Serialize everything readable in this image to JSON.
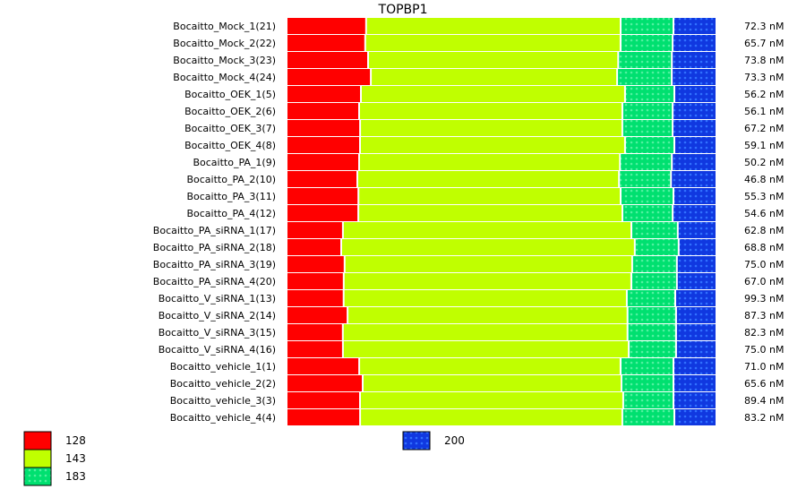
{
  "chart_data": {
    "type": "bar",
    "stacked": "percent",
    "orientation": "horizontal",
    "title": "TOPBP1",
    "categories": [
      "Bocaitto_Mock_1(21)",
      "Bocaitto_Mock_2(22)",
      "Bocaitto_Mock_3(23)",
      "Bocaitto_Mock_4(24)",
      "Bocaitto_OEK_1(5)",
      "Bocaitto_OEK_2(6)",
      "Bocaitto_OEK_3(7)",
      "Bocaitto_OEK_4(8)",
      "Bocaitto_PA_1(9)",
      "Bocaitto_PA_2(10)",
      "Bocaitto_PA_3(11)",
      "Bocaitto_PA_4(12)",
      "Bocaitto_PA_siRNA_1(17)",
      "Bocaitto_PA_siRNA_2(18)",
      "Bocaitto_PA_siRNA_3(19)",
      "Bocaitto_PA_siRNA_4(20)",
      "Bocaitto_V_siRNA_1(13)",
      "Bocaitto_V_siRNA_2(14)",
      "Bocaitto_V_siRNA_3(15)",
      "Bocaitto_V_siRNA_4(16)",
      "Bocaitto_vehicle_1(1)",
      "Bocaitto_vehicle_2(2)",
      "Bocaitto_vehicle_3(3)",
      "Bocaitto_vehicle_4(4)"
    ],
    "totals": [
      "72.3 nM",
      "65.7 nM",
      "73.8 nM",
      "73.3 nM",
      "56.2 nM",
      "56.1 nM",
      "67.2 nM",
      "59.1 nM",
      "50.2 nM",
      "46.8 nM",
      "55.3 nM",
      "54.6 nM",
      "62.8 nM",
      "68.8 nM",
      "75.0 nM",
      "67.0 nM",
      "99.3 nM",
      "87.3 nM",
      "82.3 nM",
      "75.0 nM",
      "71.0 nM",
      "65.6 nM",
      "89.4 nM",
      "83.2 nM"
    ],
    "series": [
      {
        "name": "128",
        "color": "#ff0000",
        "values": [
          18.5,
          18.3,
          19.0,
          19.6,
          17.3,
          16.9,
          17.1,
          17.1,
          16.9,
          16.5,
          16.7,
          16.7,
          13.1,
          12.7,
          13.5,
          13.3,
          13.3,
          14.2,
          13.1,
          13.1,
          16.9,
          17.7,
          17.1,
          17.1
        ]
      },
      {
        "name": "143",
        "color": "#c0ff00",
        "values": [
          59.2,
          59.4,
          58.3,
          57.3,
          61.5,
          61.3,
          61.0,
          61.7,
          60.8,
          61.0,
          61.0,
          61.5,
          67.1,
          68.3,
          66.9,
          66.9,
          66.0,
          65.2,
          66.3,
          66.5,
          60.8,
          60.2,
          61.3,
          61.0
        ]
      },
      {
        "name": "183",
        "color": "#00e070",
        "values": [
          12.3,
          12.1,
          12.5,
          12.7,
          11.5,
          11.7,
          11.7,
          11.5,
          12.1,
          12.1,
          12.3,
          11.7,
          10.8,
          10.2,
          10.4,
          10.6,
          11.3,
          11.3,
          11.3,
          11.0,
          12.3,
          12.1,
          11.7,
          12.1
        ]
      },
      {
        "name": "200",
        "color": "#1040e0",
        "values": [
          10.0,
          10.2,
          10.4,
          10.4,
          9.8,
          10.2,
          10.2,
          9.8,
          10.4,
          10.6,
          10.0,
          10.2,
          9.0,
          8.8,
          9.2,
          9.2,
          9.6,
          9.4,
          9.4,
          9.4,
          10.0,
          10.0,
          10.0,
          9.8
        ]
      }
    ],
    "legend": "bottom"
  }
}
